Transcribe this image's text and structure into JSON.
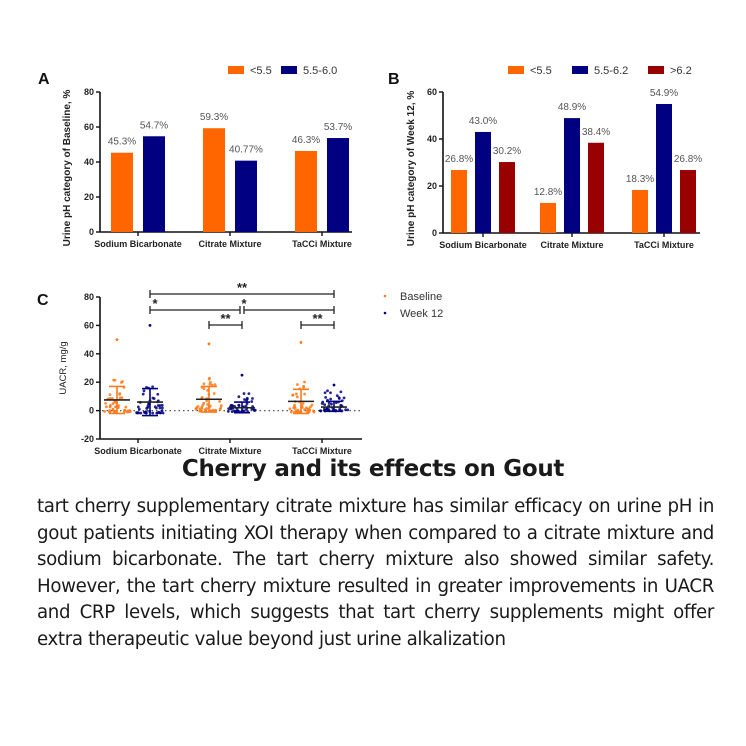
{
  "chart_data": [
    {
      "panel": "A",
      "type": "bar",
      "ylabel": "Urine pH category of Baseline, %",
      "ylim": [
        0,
        80
      ],
      "yticks": [
        0,
        20,
        40,
        60,
        80
      ],
      "categories": [
        "Sodium Bicarbonate",
        "Citrate Mixture",
        "TaCCi Mixture"
      ],
      "legend_position": "top-right",
      "series": [
        {
          "name": "<5.5",
          "color": "#ff6600",
          "values": [
            45.3,
            59.3,
            46.3
          ],
          "labels": [
            "45.3%",
            "59.3%",
            "46.3%"
          ]
        },
        {
          "name": "5.5-6.0",
          "color": "#000080",
          "values": [
            54.7,
            40.77,
            53.7
          ],
          "labels": [
            "54.7%",
            "40.77%",
            "53.7%"
          ]
        }
      ]
    },
    {
      "panel": "B",
      "type": "bar",
      "ylabel": "Urine pH category of Week 12, %",
      "ylim": [
        0,
        60
      ],
      "yticks": [
        0,
        20,
        40,
        60
      ],
      "categories": [
        "Sodium Bicarbonate",
        "Citrate Mixture",
        "TaCCi Mixture"
      ],
      "legend_position": "top-right",
      "series": [
        {
          "name": "<5.5",
          "color": "#ff6600",
          "values": [
            26.8,
            12.8,
            18.3
          ],
          "labels": [
            "26.8%",
            "12.8%",
            "18.3%"
          ]
        },
        {
          "name": "5.5-6.2",
          "color": "#000080",
          "values": [
            43.0,
            48.9,
            54.9
          ],
          "labels": [
            "43.0%",
            "48.9%",
            "54.9%"
          ]
        },
        {
          "name": ">6.2",
          "color": "#990000",
          "values": [
            30.2,
            38.4,
            26.8
          ],
          "labels": [
            "30.2%",
            "38.4%",
            "26.8%"
          ]
        }
      ]
    },
    {
      "panel": "C",
      "type": "scatter",
      "ylabel": "UACR, mg/g",
      "ylim": [
        -20,
        80
      ],
      "yticks": [
        -20,
        0,
        20,
        40,
        60,
        80
      ],
      "categories": [
        "Sodium Bicarbonate",
        "Citrate Mixture",
        "TaCCi Mixture"
      ],
      "legend_position": "right",
      "reference_line": 0,
      "series": [
        {
          "name": "Baseline",
          "color": "#ff7a1a",
          "mean": [
            7.5,
            8.0,
            6.5
          ],
          "sd_upper": [
            17.0,
            17.0,
            15.0
          ],
          "sd_lower": [
            -2.0,
            -1.0,
            -2.0
          ],
          "max_point": [
            50,
            47,
            48
          ]
        },
        {
          "name": "Week 12",
          "color": "#000080",
          "mean": [
            6.0,
            2.0,
            2.5
          ],
          "sd_upper": [
            15.5,
            6.0,
            6.5
          ],
          "sd_lower": [
            -3.5,
            -1.5,
            -0.5
          ],
          "max_point": [
            60,
            25,
            18
          ]
        }
      ],
      "significance": [
        {
          "from": "Sodium Bicarbonate Week 12",
          "to": "TaCCi Mixture Week 12",
          "label": "**"
        },
        {
          "from": "Sodium Bicarbonate Week 12",
          "to": "Citrate Mixture Week 12",
          "label": "*"
        },
        {
          "from": "Citrate Mixture Week 12",
          "to": "TaCCi Mixture Week 12",
          "label": "*"
        },
        {
          "from": "Citrate Mixture Baseline",
          "to": "Citrate Mixture Week 12",
          "label": "**"
        },
        {
          "from": "TaCCi Mixture Baseline",
          "to": "TaCCi Mixture Week 12",
          "label": "**"
        }
      ]
    }
  ],
  "heading": "Cherry and its effects on Gout",
  "body": "tart cherry supplementary citrate mixture has similar efficacy on urine pH in gout patients initiating XOI therapy when compared to a citrate mixture and sodium bicarbonate. The tart cherry mixture also showed similar safety. However, the tart cherry mixture resulted in greater improvements in UACR and CRP levels, which suggests that tart cherry supplements might offer extra therapeutic value beyond just urine alkalization"
}
